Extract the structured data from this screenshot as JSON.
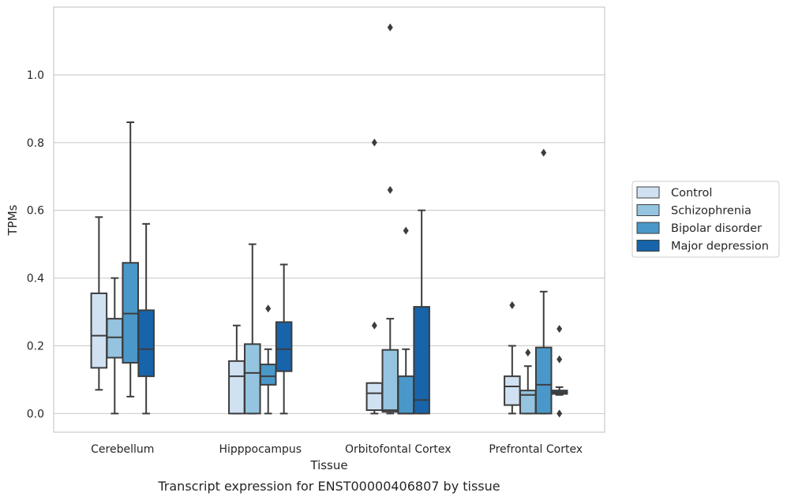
{
  "caption": "Transcript expression for ENST00000406807 by tissue",
  "chart_data": {
    "type": "boxplot",
    "xlabel": "Tissue",
    "ylabel": "TPMs",
    "ylim": [
      -0.055,
      1.2
    ],
    "yticks": [
      0.0,
      0.2,
      0.4,
      0.6,
      0.8,
      1.0
    ],
    "ytick_labels": [
      "0.0",
      "0.2",
      "0.4",
      "0.6",
      "0.8",
      "1.0"
    ],
    "grid": "horizontal",
    "legend_position": "right",
    "categories": [
      "Cerebellum",
      "Hipppocampus",
      "Orbitofontal Cortex",
      "Prefrontal Cortex"
    ],
    "series": [
      {
        "name": "Control",
        "color": "#d0e1f2",
        "boxes": [
          {
            "whislo": 0.07,
            "q1": 0.135,
            "med": 0.23,
            "q3": 0.355,
            "whishi": 0.58,
            "fliers": []
          },
          {
            "whislo": 0.0,
            "q1": 0.0,
            "med": 0.11,
            "q3": 0.155,
            "whishi": 0.26,
            "fliers": []
          },
          {
            "whislo": 0.0,
            "q1": 0.01,
            "med": 0.06,
            "q3": 0.09,
            "whishi": 0.09,
            "fliers": [
              0.26,
              0.8
            ]
          },
          {
            "whislo": 0.0,
            "q1": 0.025,
            "med": 0.08,
            "q3": 0.11,
            "whishi": 0.2,
            "fliers": [
              0.32
            ]
          }
        ]
      },
      {
        "name": "Schizophrenia",
        "color": "#94c4df",
        "boxes": [
          {
            "whislo": 0.0,
            "q1": 0.165,
            "med": 0.225,
            "q3": 0.28,
            "whishi": 0.4,
            "fliers": []
          },
          {
            "whislo": 0.0,
            "q1": 0.0,
            "med": 0.12,
            "q3": 0.205,
            "whishi": 0.5,
            "fliers": []
          },
          {
            "whislo": 0.0,
            "q1": 0.005,
            "med": 0.01,
            "q3": 0.188,
            "whishi": 0.28,
            "fliers": [
              0.66,
              1.14
            ]
          },
          {
            "whislo": 0.0,
            "q1": 0.0,
            "med": 0.055,
            "q3": 0.068,
            "whishi": 0.14,
            "fliers": [
              0.18
            ]
          }
        ]
      },
      {
        "name": "Bipolar disorder",
        "color": "#4a98c9",
        "boxes": [
          {
            "whislo": 0.05,
            "q1": 0.15,
            "med": 0.295,
            "q3": 0.445,
            "whishi": 0.86,
            "fliers": []
          },
          {
            "whislo": 0.0,
            "q1": 0.085,
            "med": 0.11,
            "q3": 0.145,
            "whishi": 0.19,
            "fliers": [
              0.31
            ]
          },
          {
            "whislo": 0.0,
            "q1": 0.0,
            "med": 0.0,
            "q3": 0.11,
            "whishi": 0.19,
            "fliers": [
              0.54
            ]
          },
          {
            "whislo": 0.0,
            "q1": 0.0,
            "med": 0.085,
            "q3": 0.195,
            "whishi": 0.36,
            "fliers": [
              0.77
            ]
          }
        ]
      },
      {
        "name": "Major depression",
        "color": "#1764ab",
        "boxes": [
          {
            "whislo": 0.0,
            "q1": 0.11,
            "med": 0.19,
            "q3": 0.305,
            "whishi": 0.56,
            "fliers": []
          },
          {
            "whislo": 0.0,
            "q1": 0.125,
            "med": 0.19,
            "q3": 0.27,
            "whishi": 0.44,
            "fliers": []
          },
          {
            "whislo": 0.0,
            "q1": 0.0,
            "med": 0.04,
            "q3": 0.315,
            "whishi": 0.6,
            "fliers": []
          },
          {
            "whislo": 0.055,
            "q1": 0.058,
            "med": 0.063,
            "q3": 0.068,
            "whishi": 0.078,
            "fliers": [
              0.0,
              0.16,
              0.25
            ]
          }
        ]
      }
    ]
  }
}
